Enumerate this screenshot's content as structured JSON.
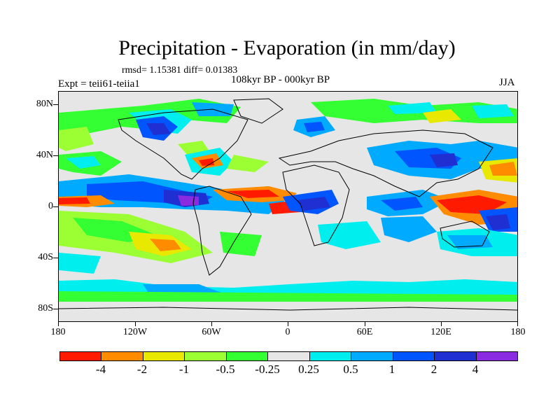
{
  "header": {
    "title": "Precipitation - Evaporation (in mm/day)",
    "stats": "rmsd= 1.15381 diff= 0.01383",
    "experiment": "Expt = teii61-teiia1",
    "period": "108kyr BP - 000kyr BP",
    "season": "JJA"
  },
  "axes": {
    "y_labels": [
      "80N",
      "40N",
      "0",
      "40S",
      "80S"
    ],
    "x_labels": [
      "180",
      "120W",
      "60W",
      "0",
      "60E",
      "120E",
      "180"
    ],
    "lon_range": [
      -180,
      180
    ],
    "lat_range": [
      -90,
      90
    ]
  },
  "colorbar": {
    "labels": [
      "-4",
      "-2",
      "-1",
      "-0.5",
      "-0.25",
      "0.25",
      "0.5",
      "1",
      "2",
      "4"
    ],
    "colors": [
      "#ff1a00",
      "#ff8c00",
      "#e8e800",
      "#9cff33",
      "#33ff33",
      "#e6e6e6",
      "#00eeee",
      "#00aaff",
      "#0055ff",
      "#1f2fd1",
      "#8a2be2"
    ]
  },
  "legend_bins": {
    "neg4": "#ff1a00",
    "neg2": "#ff8c00",
    "neg1": "#e8e800",
    "neg05": "#9cff33",
    "neg025": "#33ff33",
    "zero": "#e6e6e6",
    "pos025": "#00eeee",
    "pos05": "#00aaff",
    "pos1": "#0055ff",
    "pos2": "#1f2fd1",
    "pos4": "#8a2be2"
  }
}
